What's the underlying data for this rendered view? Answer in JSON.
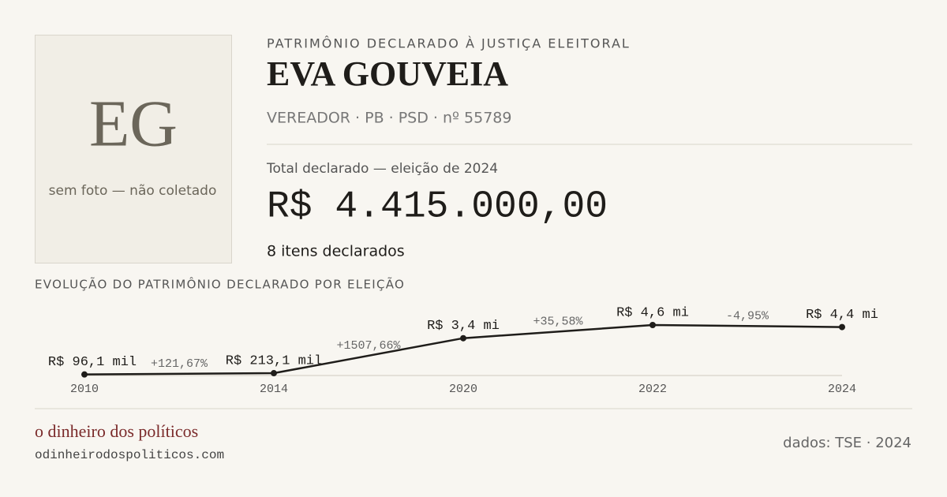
{
  "avatar": {
    "initials": "EG",
    "note": "sem foto — não coletado"
  },
  "header": {
    "kicker": "PATRIMÔNIO DECLARADO À JUSTIÇA ELEITORAL",
    "name": "EVA GOUVEIA",
    "subtitle": "VEREADOR · PB · PSD · nº 55789"
  },
  "total": {
    "label": "Total declarado — eleição de 2024",
    "amount": "R$ 4.415.000,00",
    "items": "8 itens declarados"
  },
  "chart_data": {
    "type": "line",
    "title": "EVOLUÇÃO DO PATRIMÔNIO DECLARADO POR ELEIÇÃO",
    "categories": [
      "2010",
      "2014",
      "2020",
      "2022",
      "2024"
    ],
    "values": [
      96100,
      213100,
      3400000,
      4600000,
      4415000
    ],
    "value_labels": [
      "R$ 96,1 mil",
      "R$ 213,1 mil",
      "R$ 3,4 mi",
      "R$ 4,6 mi",
      "R$ 4,4 mi"
    ],
    "change_labels": [
      "+121,67%",
      "+1507,66%",
      "+35,58%",
      "-4,95%"
    ],
    "color": "#1f1d1a"
  },
  "footer": {
    "brand": "o dinheiro dos políticos",
    "url": "odinheirodospoliticos.com",
    "source": "dados: TSE · 2024"
  }
}
